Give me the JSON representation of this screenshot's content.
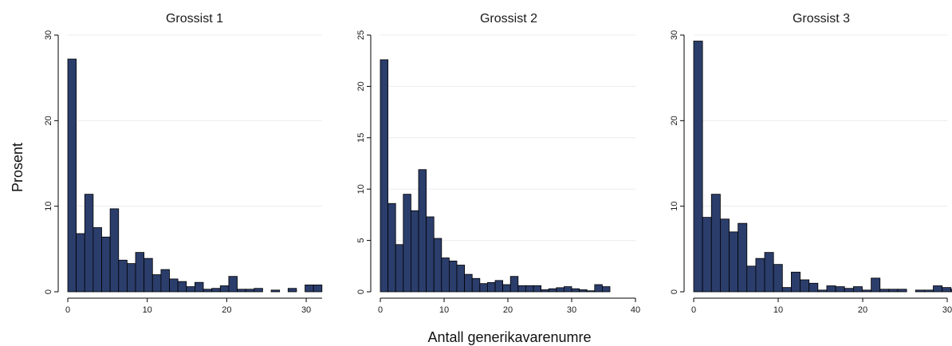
{
  "chart_data": {
    "type": "bar",
    "ylabel": "Prosent",
    "xlabel": "Antall generikavarenumre",
    "grid": true,
    "panels": [
      {
        "title": "Grossist 1",
        "xlim": [
          0,
          32
        ],
        "ylim": [
          0,
          30
        ],
        "xticks": [
          0,
          10,
          20,
          30
        ],
        "yticks": [
          0,
          10,
          20,
          30
        ],
        "bin_width": 1.066,
        "values": [
          27.2,
          6.8,
          11.4,
          7.5,
          6.4,
          9.7,
          3.7,
          3.3,
          4.6,
          3.9,
          2.0,
          2.6,
          1.5,
          1.2,
          0.6,
          1.1,
          0.3,
          0.4,
          0.7,
          1.8,
          0.3,
          0.3,
          0.4,
          0.0,
          0.2,
          0.0,
          0.4,
          0.0,
          0.8,
          0.8
        ]
      },
      {
        "title": "Grossist 2",
        "xlim": [
          0,
          40
        ],
        "ylim": [
          0,
          25
        ],
        "xticks": [
          0,
          10,
          20,
          30,
          40
        ],
        "yticks": [
          0,
          5,
          10,
          15,
          20,
          25
        ],
        "bin_width": 1.2,
        "values": [
          22.6,
          8.6,
          4.6,
          9.5,
          7.9,
          11.9,
          7.3,
          5.2,
          3.3,
          3.0,
          2.6,
          1.7,
          1.3,
          0.8,
          0.9,
          1.1,
          0.7,
          1.5,
          0.6,
          0.6,
          0.6,
          0.2,
          0.3,
          0.4,
          0.5,
          0.3,
          0.2,
          0.1,
          0.7,
          0.5
        ]
      },
      {
        "title": "Grossist 3",
        "xlim": [
          0,
          30
        ],
        "ylim": [
          0,
          30
        ],
        "xticks": [
          0,
          10,
          20,
          30
        ],
        "yticks": [
          0,
          10,
          20,
          30
        ],
        "bin_width": 1.05,
        "values": [
          29.3,
          8.7,
          11.4,
          8.5,
          7.0,
          8.0,
          3.0,
          3.9,
          4.6,
          3.2,
          0.5,
          2.3,
          1.4,
          1.0,
          0.2,
          0.7,
          0.6,
          0.4,
          0.6,
          0.2,
          1.6,
          0.3,
          0.3,
          0.3,
          0.0,
          0.2,
          0.2,
          0.7,
          0.5,
          0.3
        ]
      }
    ]
  }
}
